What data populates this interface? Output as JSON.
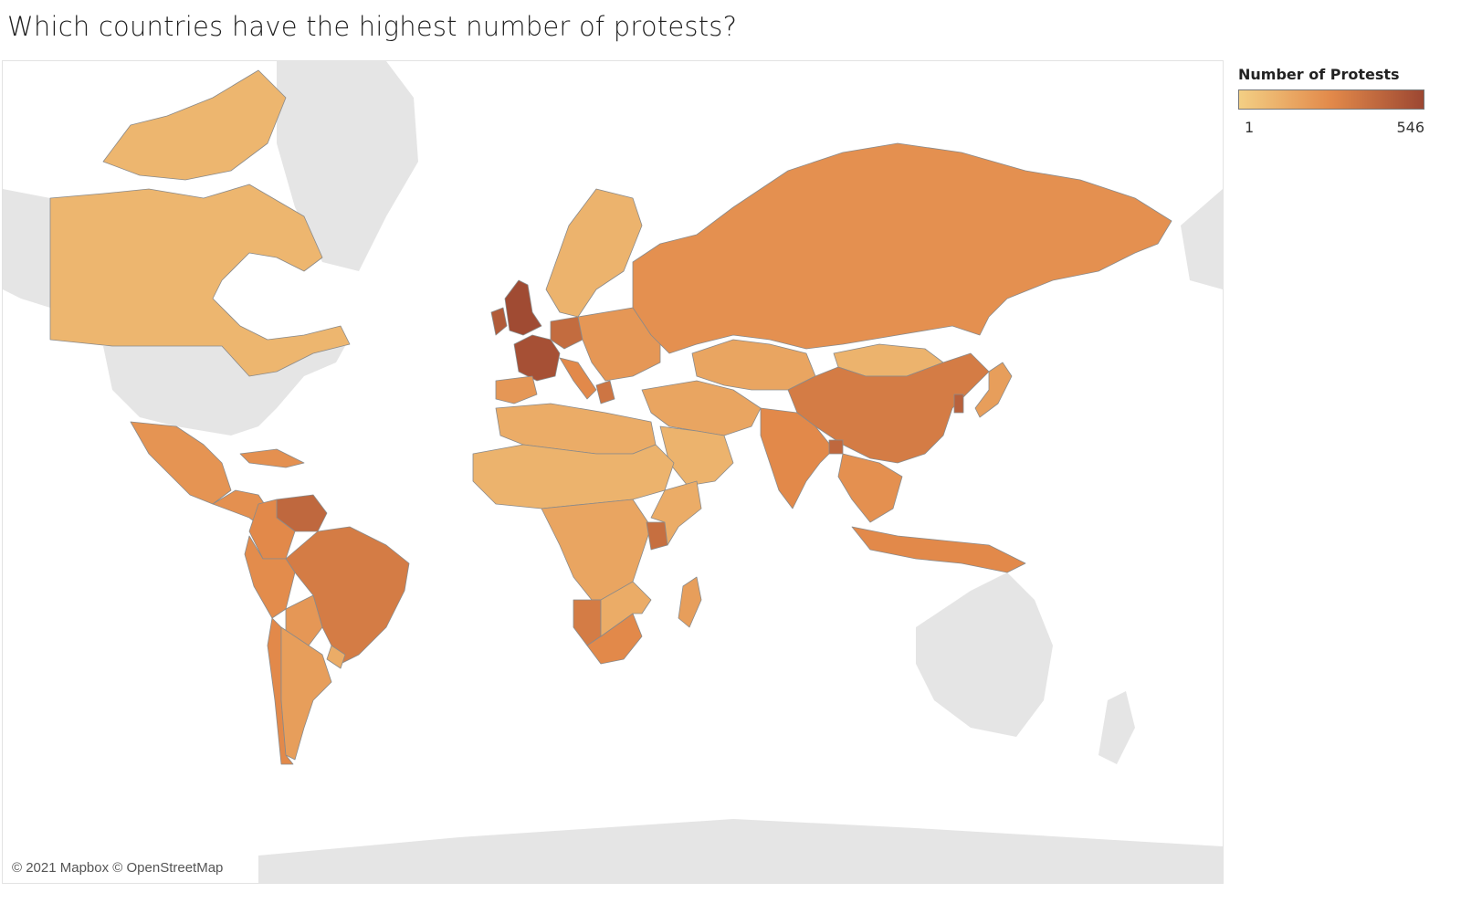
{
  "title": "Which countries have the highest number of protests?",
  "legend": {
    "title": "Number of Protests",
    "min_label": "1",
    "max_label": "546",
    "color_low": "#f3cf84",
    "color_mid": "#e2894a",
    "color_high": "#9c4732"
  },
  "attribution": "© 2021 Mapbox © OpenStreetMap",
  "colors": {
    "no_data_land": "#e5e5e5",
    "ocean": "#ffffff",
    "country_border": "#8a8a8a"
  },
  "regions": [
    {
      "name": "Canada",
      "level": 0.18
    },
    {
      "name": "Greenland",
      "level": null
    },
    {
      "name": "United States",
      "level": null
    },
    {
      "name": "Mexico",
      "level": 0.42
    },
    {
      "name": "Central America",
      "level": 0.45
    },
    {
      "name": "Cuba",
      "level": 0.45
    },
    {
      "name": "Venezuela",
      "level": 0.75
    },
    {
      "name": "Colombia",
      "level": 0.5
    },
    {
      "name": "Brazil",
      "level": 0.6
    },
    {
      "name": "Peru",
      "level": 0.48
    },
    {
      "name": "Bolivia",
      "level": 0.4
    },
    {
      "name": "Argentina",
      "level": 0.35
    },
    {
      "name": "Chile",
      "level": 0.5
    },
    {
      "name": "Uruguay",
      "level": 0.25
    },
    {
      "name": "United Kingdom",
      "level": 0.97
    },
    {
      "name": "Ireland",
      "level": 0.85
    },
    {
      "name": "France",
      "level": 0.93
    },
    {
      "name": "Germany",
      "level": 0.72
    },
    {
      "name": "Spain",
      "level": 0.4
    },
    {
      "name": "Italy",
      "level": 0.5
    },
    {
      "name": "Scandinavia",
      "level": 0.2
    },
    {
      "name": "Eastern Europe",
      "level": 0.4
    },
    {
      "name": "Greece",
      "level": 0.65
    },
    {
      "name": "Russia",
      "level": 0.45
    },
    {
      "name": "Kazakhstan",
      "level": 0.3
    },
    {
      "name": "Mongolia",
      "level": 0.2
    },
    {
      "name": "China",
      "level": 0.6
    },
    {
      "name": "India",
      "level": 0.5
    },
    {
      "name": "Bangladesh",
      "level": 0.75
    },
    {
      "name": "Southeast Asia",
      "level": 0.45
    },
    {
      "name": "Indonesia",
      "level": 0.5
    },
    {
      "name": "Japan",
      "level": 0.35
    },
    {
      "name": "South Korea",
      "level": 0.8
    },
    {
      "name": "Middle East",
      "level": 0.3
    },
    {
      "name": "Saudi Arabia",
      "level": 0.2
    },
    {
      "name": "North Africa",
      "level": 0.25
    },
    {
      "name": "Sahel",
      "level": 0.2
    },
    {
      "name": "Central Africa",
      "level": 0.3
    },
    {
      "name": "Kenya",
      "level": 0.7
    },
    {
      "name": "Namibia",
      "level": 0.6
    },
    {
      "name": "South Africa",
      "level": 0.5
    },
    {
      "name": "Madagascar",
      "level": 0.35
    },
    {
      "name": "Antarctica",
      "level": null
    },
    {
      "name": "Australia",
      "level": null
    },
    {
      "name": "New Zealand",
      "level": null
    }
  ]
}
